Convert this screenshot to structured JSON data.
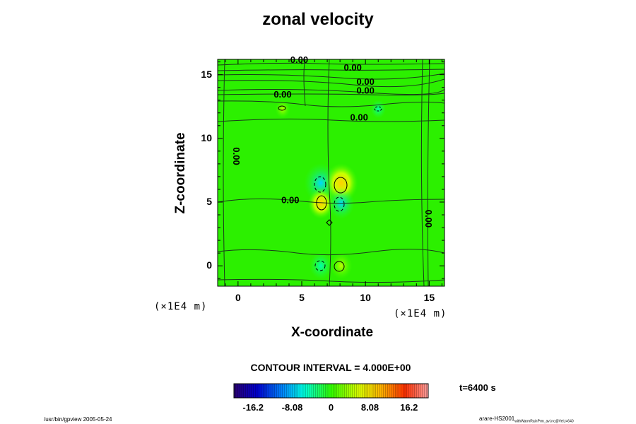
{
  "chart_data": {
    "type": "heatmap",
    "title": "zonal velocity",
    "xlabel": "X-coordinate",
    "ylabel": "Z-coordinate",
    "x_unit": "(×1E4 m)",
    "y_unit": "(×1E4 m)",
    "xlim": [
      -1.6,
      16.2
    ],
    "ylim": [
      -1.6,
      16.2
    ],
    "xticks": [
      "0",
      "5",
      "10",
      "15"
    ],
    "yticks": [
      "0",
      "5",
      "10",
      "15"
    ],
    "contour_interval": "CONTOUR INTERVAL = 4.000E+00",
    "contour_labels": [
      {
        "text": "0.00",
        "x": 4.8,
        "y": 16.1
      },
      {
        "text": "0.00",
        "x": 9.0,
        "y": 15.5
      },
      {
        "text": "0.00",
        "x": 10.0,
        "y": 14.4
      },
      {
        "text": "0.00",
        "x": 10.0,
        "y": 13.7
      },
      {
        "text": "0.00",
        "x": 3.5,
        "y": 13.4
      },
      {
        "text": "0.00",
        "x": 9.5,
        "y": 11.6
      },
      {
        "text": "0.00",
        "x": 4.1,
        "y": 5.1
      },
      {
        "text": "0.00",
        "x": -0.2,
        "y": 8.6
      },
      {
        "text": "0.00",
        "x": 14.9,
        "y": 3.7
      }
    ],
    "extrema": [
      {
        "x": 6.5,
        "y": 6.5,
        "sign": "negative",
        "value": -6
      },
      {
        "x": 8.1,
        "y": 6.5,
        "sign": "positive",
        "value": 6
      },
      {
        "x": 6.5,
        "y": 4.9,
        "sign": "positive",
        "value": 4
      },
      {
        "x": 8.1,
        "y": 4.9,
        "sign": "negative",
        "value": -4
      },
      {
        "x": 6.5,
        "y": 0.0,
        "sign": "negative",
        "value": -3
      },
      {
        "x": 8.1,
        "y": 0.0,
        "sign": "positive",
        "value": 3
      },
      {
        "x": 3.5,
        "y": 12.3,
        "sign": "positive",
        "value": 1
      },
      {
        "x": 11.0,
        "y": 12.3,
        "sign": "negative",
        "value": -1
      }
    ],
    "colorbar": {
      "range": [
        -20.2,
        20.2
      ],
      "ticks": [
        "-16.2",
        "-8.08",
        "0",
        "8.08",
        "16.2"
      ],
      "tick_values": [
        -16.2,
        -8.08,
        0,
        8.08,
        16.2
      ]
    },
    "time_label": "t=6400 s"
  },
  "footer": {
    "left": "/usr/bin/gpview 2005-05-24",
    "right_main": "arare-HS2001",
    "right_sub": "withWarmRainPrm_avi.nc@Vel,t=640"
  }
}
